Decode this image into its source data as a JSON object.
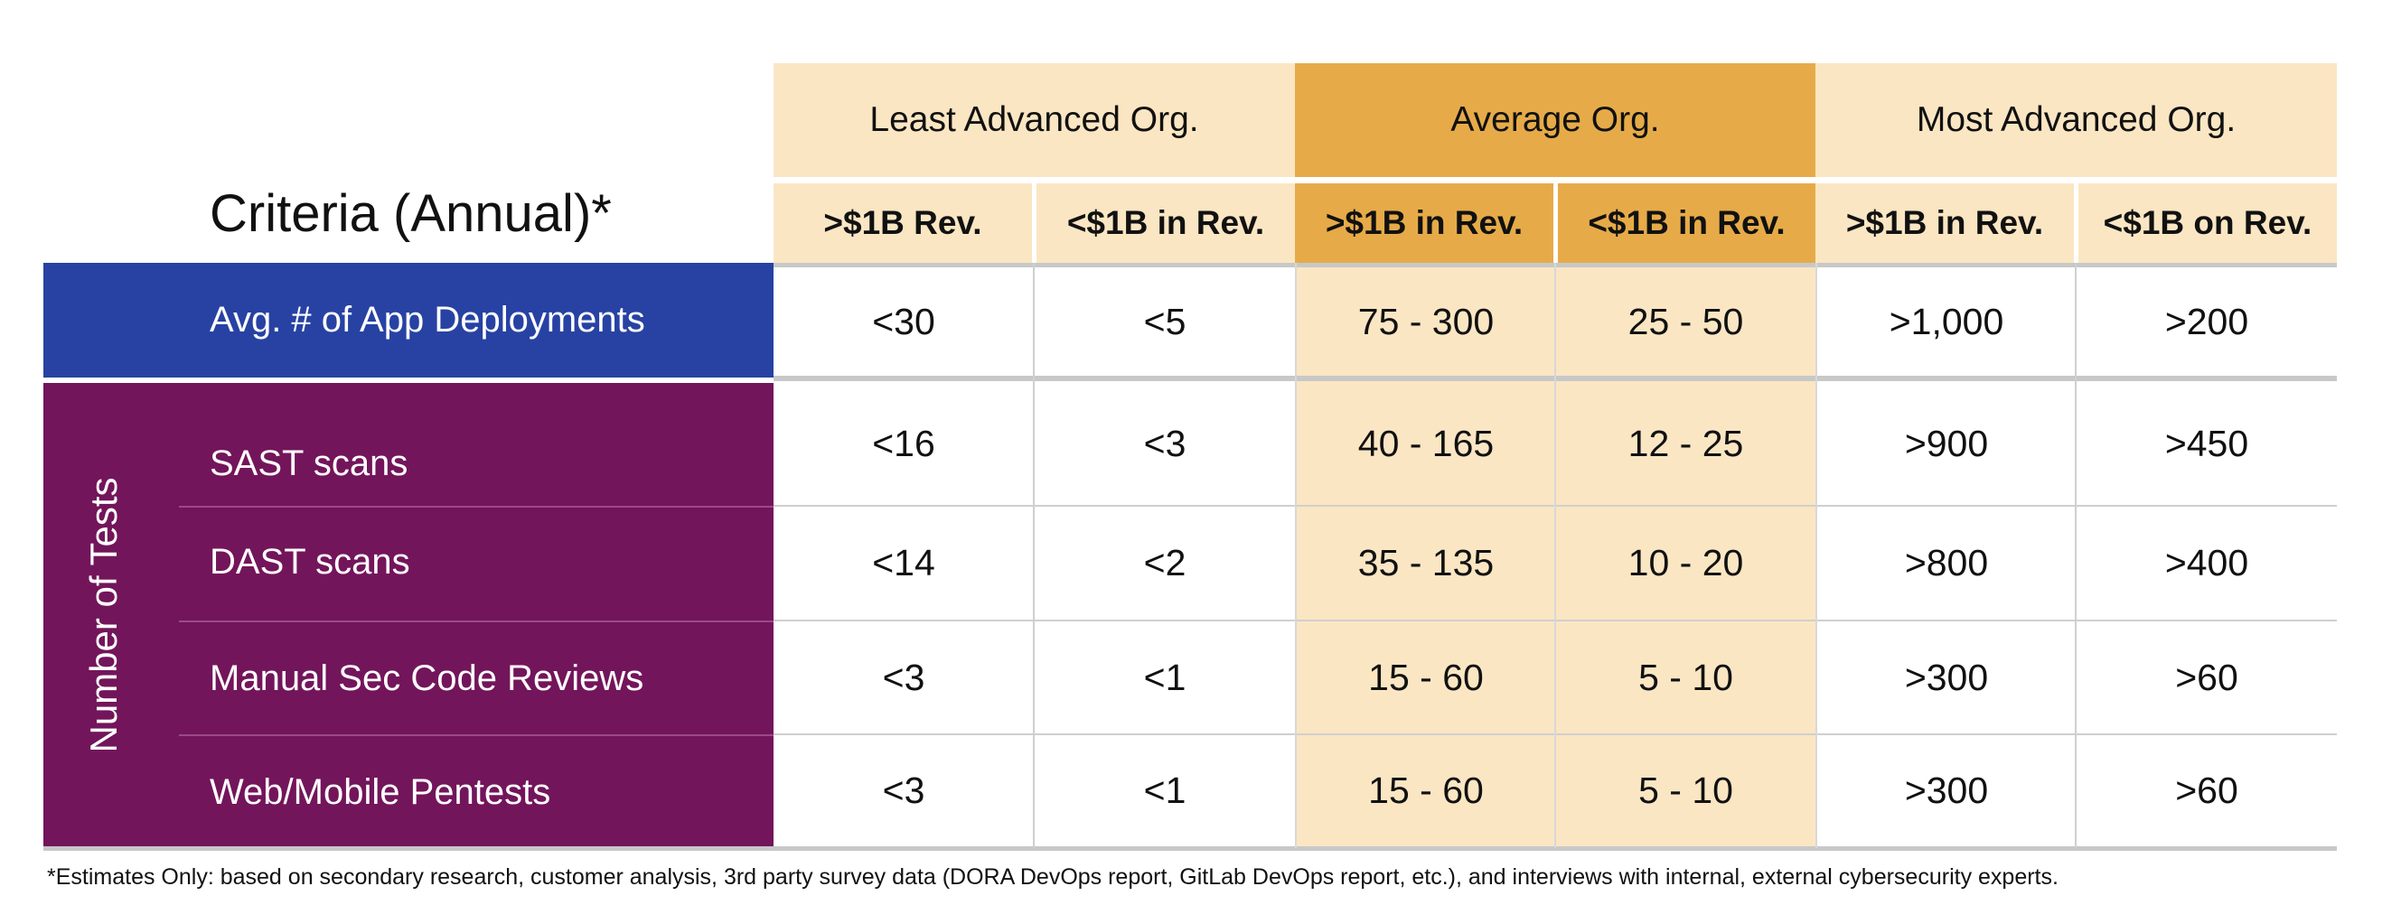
{
  "criteria_title": "Criteria (Annual)*",
  "groups": [
    "Least Advanced Org.",
    "Average Org.",
    "Most Advanced Org."
  ],
  "subheaders": [
    ">$1B Rev.",
    "<$1B in Rev.",
    ">$1B in Rev.",
    "<$1B in Rev.",
    ">$1B in Rev.",
    "<$1B on Rev."
  ],
  "deployments": {
    "label": "Avg. # of App Deployments",
    "values": [
      "<30",
      "<5",
      "75 - 300",
      "25 - 50",
      ">1,000",
      ">200"
    ]
  },
  "tests": {
    "group_label": "Number of Tests",
    "rows": [
      {
        "label": "SAST scans",
        "values": [
          "<16",
          "<3",
          "40 - 165",
          "12 - 25",
          ">900",
          ">450"
        ]
      },
      {
        "label": "DAST scans",
        "values": [
          "<14",
          "<2",
          "35 - 135",
          "10 - 20",
          ">800",
          ">400"
        ]
      },
      {
        "label": "Manual Sec Code Reviews",
        "values": [
          "<3",
          "<1",
          "15 - 60",
          "5 - 10",
          ">300",
          ">60"
        ]
      },
      {
        "label": "Web/Mobile Pentests",
        "values": [
          "<3",
          "<1",
          "15 - 60",
          "5 - 10",
          ">300",
          ">60"
        ]
      }
    ]
  },
  "footnote": "*Estimates Only: based on secondary research, customer analysis, 3rd party survey data (DORA DevOps report, GitLab DevOps report, etc.), and interviews with internal, external cybersecurity experts.",
  "colors": {
    "light_header": "#fbe6c3",
    "dark_header": "#e6ab48",
    "blue": "#2742a3",
    "purple": "#73155b",
    "highlight_column": "#fbe6c3",
    "grid": "#cfcfcf"
  }
}
